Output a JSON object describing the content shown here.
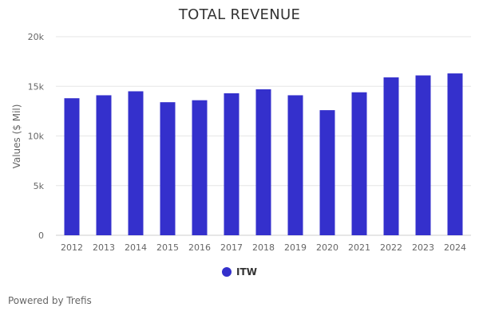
{
  "chart_data": {
    "type": "bar",
    "title": "TOTAL REVENUE",
    "xlabel": "",
    "ylabel": "Values ($ Mil)",
    "categories": [
      "2012",
      "2013",
      "2014",
      "2015",
      "2016",
      "2017",
      "2018",
      "2019",
      "2020",
      "2021",
      "2022",
      "2023",
      "2024"
    ],
    "series": [
      {
        "name": "ITW",
        "color": "#3430cc",
        "values": [
          13800,
          14100,
          14500,
          13400,
          13600,
          14300,
          14700,
          14100,
          12600,
          14400,
          15900,
          16100,
          16300
        ]
      }
    ],
    "ylim": [
      0,
      20000
    ],
    "yticks": [
      {
        "value": 0,
        "label": "0"
      },
      {
        "value": 5000,
        "label": "5k"
      },
      {
        "value": 10000,
        "label": "10k"
      },
      {
        "value": 15000,
        "label": "15k"
      },
      {
        "value": 20000,
        "label": "20k"
      }
    ],
    "grid": true,
    "legend": "bottom-center"
  },
  "footer": {
    "text": "Powered by Trefis"
  }
}
